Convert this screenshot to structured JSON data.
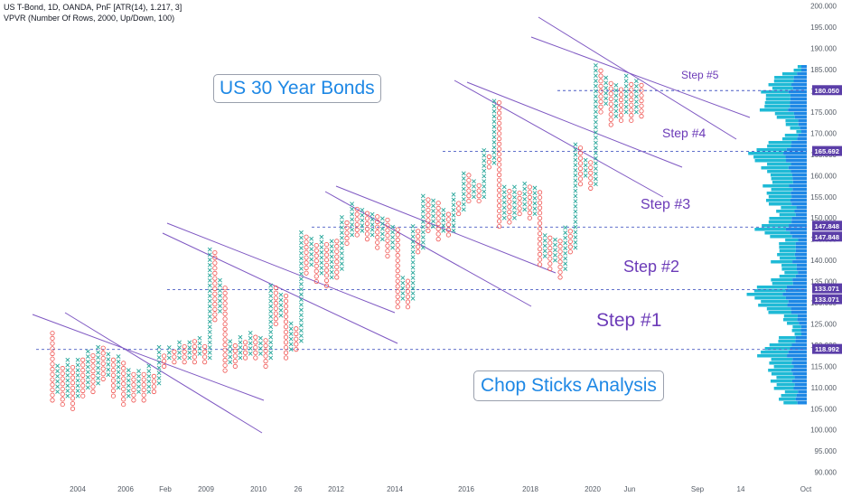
{
  "header": {
    "line1": "US T-Bond, 1D, OANDA, PnF [ATR(14), 1.217, 3]",
    "line2": "VPVR (Number Of Rows, 2000, Up/Down, 100)"
  },
  "annotations": {
    "title_box": "US 30 Year Bonds",
    "subtitle_box": "Chop Sticks Analysis",
    "steps": [
      "Step #1",
      "Step #2",
      "Step #3",
      "Step #4",
      "Step #5"
    ]
  },
  "colors": {
    "x_box": "#26a69a",
    "o_box": "#ef5350",
    "trend_line": "#7e57c2",
    "level_line": "#4a5cc4",
    "badge": "#5b3ea8",
    "vp_dark": "#1e88e5",
    "vp_light": "#1fbad6"
  },
  "chart_data": {
    "type": "point-and-figure",
    "symbol": "US T-Bond",
    "box_size": 1.217,
    "reversal": 3,
    "y_range": [
      88,
      201
    ],
    "x_tick_labels": [
      "2004",
      "2006",
      "Feb",
      "2009",
      "2010",
      "26",
      "2012",
      "2014",
      "2016",
      "2018",
      "2020",
      "Jun",
      "Sep",
      "14",
      "Oct"
    ],
    "y_ticks": [
      90,
      95,
      100,
      105,
      110,
      115,
      120,
      125,
      130,
      135,
      140,
      145,
      150,
      155,
      160,
      165,
      170,
      175,
      180,
      185,
      190,
      195,
      200
    ],
    "levels": [
      {
        "label": "Step #1",
        "value": 118.992,
        "badge": "118.992"
      },
      {
        "label": "Step #2",
        "value": 133.071,
        "badge": "133.071"
      },
      {
        "label": "Step #3",
        "value": 147.848,
        "badge": "147.848"
      },
      {
        "label": "Step #4",
        "value": 165.692,
        "badge": "165.692"
      },
      {
        "label": "Step #5",
        "value": 180.05,
        "badge": "180.050"
      }
    ],
    "columns": [
      {
        "t": "O",
        "low": 107,
        "high": 123
      },
      {
        "t": "X",
        "low": 109,
        "high": 115
      },
      {
        "t": "O",
        "low": 106,
        "high": 114
      },
      {
        "t": "X",
        "low": 108,
        "high": 117
      },
      {
        "t": "O",
        "low": 105,
        "high": 115
      },
      {
        "t": "X",
        "low": 108,
        "high": 117
      },
      {
        "t": "O",
        "low": 108,
        "high": 116
      },
      {
        "t": "X",
        "low": 110,
        "high": 118
      },
      {
        "t": "O",
        "low": 109,
        "high": 117
      },
      {
        "t": "X",
        "low": 111,
        "high": 120
      },
      {
        "t": "O",
        "low": 112,
        "high": 119
      },
      {
        "t": "X",
        "low": 113,
        "high": 118
      },
      {
        "t": "O",
        "low": 108,
        "high": 117
      },
      {
        "t": "X",
        "low": 110,
        "high": 117
      },
      {
        "t": "O",
        "low": 106,
        "high": 116
      },
      {
        "t": "X",
        "low": 108,
        "high": 114
      },
      {
        "t": "O",
        "low": 107,
        "high": 113
      },
      {
        "t": "X",
        "low": 109,
        "high": 114
      },
      {
        "t": "O",
        "low": 107,
        "high": 113
      },
      {
        "t": "X",
        "low": 109,
        "high": 115
      },
      {
        "t": "O",
        "low": 109,
        "high": 113
      },
      {
        "t": "X",
        "low": 111,
        "high": 119
      },
      {
        "t": "O",
        "low": 115,
        "high": 118
      },
      {
        "t": "X",
        "low": 117,
        "high": 120
      },
      {
        "t": "O",
        "low": 116,
        "high": 119
      },
      {
        "t": "X",
        "low": 117,
        "high": 121
      },
      {
        "t": "O",
        "low": 116,
        "high": 120
      },
      {
        "t": "X",
        "low": 117,
        "high": 121
      },
      {
        "t": "O",
        "low": 116,
        "high": 121
      },
      {
        "t": "X",
        "low": 118,
        "high": 122
      },
      {
        "t": "O",
        "low": 116,
        "high": 120
      },
      {
        "t": "X",
        "low": 117,
        "high": 143
      },
      {
        "t": "O",
        "low": 126,
        "high": 142
      },
      {
        "t": "X",
        "low": 128,
        "high": 135
      },
      {
        "t": "O",
        "low": 114,
        "high": 134
      },
      {
        "t": "X",
        "low": 116,
        "high": 121
      },
      {
        "t": "O",
        "low": 115,
        "high": 120
      },
      {
        "t": "X",
        "low": 117,
        "high": 122
      },
      {
        "t": "O",
        "low": 117,
        "high": 121
      },
      {
        "t": "X",
        "low": 118,
        "high": 123
      },
      {
        "t": "O",
        "low": 117,
        "high": 122
      },
      {
        "t": "X",
        "low": 118,
        "high": 122
      },
      {
        "t": "O",
        "low": 115,
        "high": 121
      },
      {
        "t": "X",
        "low": 117,
        "high": 134
      },
      {
        "t": "O",
        "low": 125,
        "high": 133
      },
      {
        "t": "X",
        "low": 127,
        "high": 132
      },
      {
        "t": "O",
        "low": 117,
        "high": 131
      },
      {
        "t": "X",
        "low": 119,
        "high": 125
      },
      {
        "t": "O",
        "low": 119,
        "high": 124
      },
      {
        "t": "X",
        "low": 121,
        "high": 146
      },
      {
        "t": "O",
        "low": 137,
        "high": 145
      },
      {
        "t": "X",
        "low": 139,
        "high": 145
      },
      {
        "t": "O",
        "low": 135,
        "high": 144
      },
      {
        "t": "X",
        "low": 137,
        "high": 145
      },
      {
        "t": "O",
        "low": 134,
        "high": 144
      },
      {
        "t": "X",
        "low": 136,
        "high": 145
      },
      {
        "t": "O",
        "low": 136,
        "high": 144
      },
      {
        "t": "X",
        "low": 138,
        "high": 150
      },
      {
        "t": "O",
        "low": 144,
        "high": 149
      },
      {
        "t": "X",
        "low": 146,
        "high": 153
      },
      {
        "t": "O",
        "low": 146,
        "high": 152
      },
      {
        "t": "X",
        "low": 147,
        "high": 152
      },
      {
        "t": "O",
        "low": 145,
        "high": 151
      },
      {
        "t": "X",
        "low": 146,
        "high": 151
      },
      {
        "t": "O",
        "low": 143,
        "high": 150
      },
      {
        "t": "X",
        "low": 145,
        "high": 150
      },
      {
        "t": "O",
        "low": 141,
        "high": 149
      },
      {
        "t": "X",
        "low": 143,
        "high": 148
      },
      {
        "t": "O",
        "low": 129,
        "high": 147
      },
      {
        "t": "X",
        "low": 131,
        "high": 136
      },
      {
        "t": "O",
        "low": 129,
        "high": 135
      },
      {
        "t": "X",
        "low": 131,
        "high": 148
      },
      {
        "t": "O",
        "low": 142,
        "high": 147
      },
      {
        "t": "X",
        "low": 143,
        "high": 155
      },
      {
        "t": "O",
        "low": 147,
        "high": 154
      },
      {
        "t": "X",
        "low": 148,
        "high": 154
      },
      {
        "t": "O",
        "low": 145,
        "high": 153
      },
      {
        "t": "X",
        "low": 147,
        "high": 152
      },
      {
        "t": "O",
        "low": 146,
        "high": 151
      },
      {
        "t": "X",
        "low": 147,
        "high": 155
      },
      {
        "t": "O",
        "low": 151,
        "high": 154
      },
      {
        "t": "X",
        "low": 152,
        "high": 161
      },
      {
        "t": "O",
        "low": 154,
        "high": 160
      },
      {
        "t": "X",
        "low": 155,
        "high": 159
      },
      {
        "t": "O",
        "low": 154,
        "high": 158
      },
      {
        "t": "X",
        "low": 155,
        "high": 166
      },
      {
        "t": "O",
        "low": 162,
        "high": 165
      },
      {
        "t": "X",
        "low": 163,
        "high": 178
      },
      {
        "t": "O",
        "low": 148,
        "high": 177
      },
      {
        "t": "X",
        "low": 150,
        "high": 157
      },
      {
        "t": "O",
        "low": 149,
        "high": 156
      },
      {
        "t": "X",
        "low": 150,
        "high": 157
      },
      {
        "t": "O",
        "low": 151,
        "high": 156
      },
      {
        "t": "X",
        "low": 152,
        "high": 158
      },
      {
        "t": "O",
        "low": 150,
        "high": 157
      },
      {
        "t": "X",
        "low": 151,
        "high": 157
      },
      {
        "t": "O",
        "low": 139,
        "high": 156
      },
      {
        "t": "X",
        "low": 141,
        "high": 146
      },
      {
        "t": "O",
        "low": 138,
        "high": 145
      },
      {
        "t": "X",
        "low": 140,
        "high": 145
      },
      {
        "t": "O",
        "low": 136,
        "high": 144
      },
      {
        "t": "X",
        "low": 138,
        "high": 148
      },
      {
        "t": "O",
        "low": 142,
        "high": 147
      },
      {
        "t": "X",
        "low": 143,
        "high": 167
      },
      {
        "t": "O",
        "low": 158,
        "high": 166
      },
      {
        "t": "X",
        "low": 160,
        "high": 164
      },
      {
        "t": "O",
        "low": 157,
        "high": 163
      },
      {
        "t": "X",
        "low": 158,
        "high": 186
      },
      {
        "t": "O",
        "low": 175,
        "high": 185
      },
      {
        "t": "X",
        "low": 177,
        "high": 183
      },
      {
        "t": "O",
        "low": 172,
        "high": 182
      },
      {
        "t": "X",
        "low": 174,
        "high": 181
      },
      {
        "t": "O",
        "low": 173,
        "high": 180
      },
      {
        "t": "X",
        "low": 175,
        "high": 183
      },
      {
        "t": "O",
        "low": 173,
        "high": 182
      },
      {
        "t": "X",
        "low": 175,
        "high": 182
      },
      {
        "t": "O",
        "low": 174,
        "high": 181
      }
    ]
  }
}
